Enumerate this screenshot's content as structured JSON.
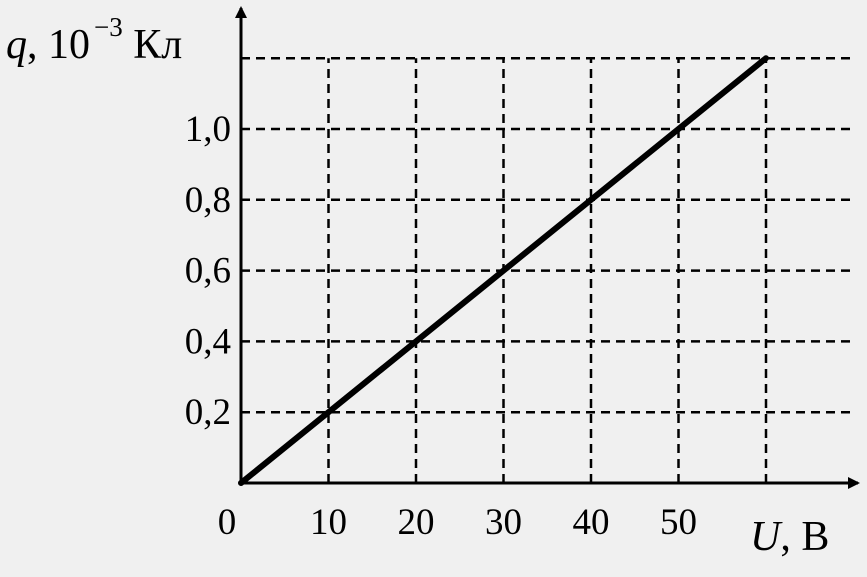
{
  "chart_data": {
    "type": "line",
    "title": "",
    "xlabel": {
      "var": "U",
      "rest": ", В"
    },
    "ylabel": {
      "var": "q",
      "rest": ", 10",
      "exp": "−3",
      "unit": " Кл"
    },
    "x_ticks": [
      {
        "value": 0,
        "label": "0"
      },
      {
        "value": 10,
        "label": "10"
      },
      {
        "value": 20,
        "label": "20"
      },
      {
        "value": 30,
        "label": "30"
      },
      {
        "value": 40,
        "label": "40"
      },
      {
        "value": 50,
        "label": "50"
      }
    ],
    "y_ticks": [
      {
        "value": 0.2,
        "label": "0,2"
      },
      {
        "value": 0.4,
        "label": "0,4"
      },
      {
        "value": 0.6,
        "label": "0,6"
      },
      {
        "value": 0.8,
        "label": "0,8"
      },
      {
        "value": 1.0,
        "label": "1,0"
      }
    ],
    "x_grid": [
      10,
      20,
      30,
      40,
      50,
      60
    ],
    "y_grid": [
      0.2,
      0.4,
      0.6,
      0.8,
      1.0,
      1.2
    ],
    "xlim": [
      0,
      60
    ],
    "ylim": [
      0,
      1.2
    ],
    "grid": true,
    "series": [
      {
        "x": [
          0,
          60
        ],
        "y": [
          0,
          1.2
        ],
        "color": "#000000"
      }
    ]
  }
}
